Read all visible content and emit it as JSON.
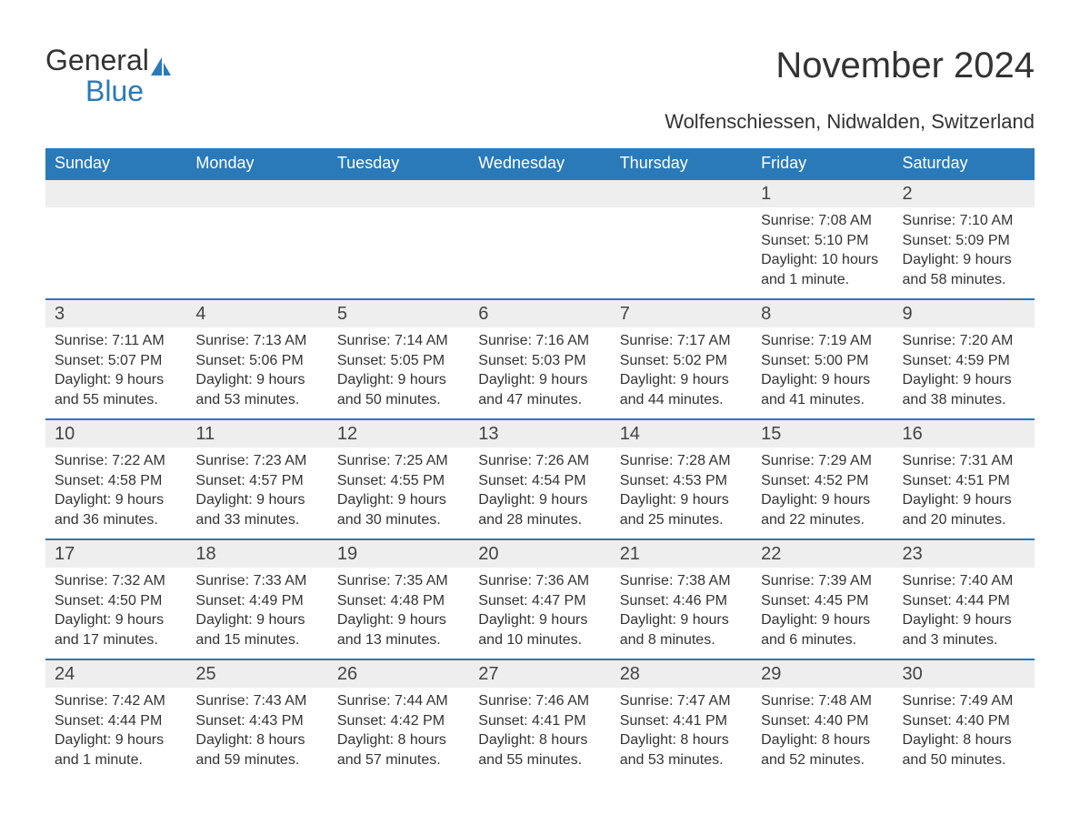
{
  "brand": {
    "name1": "General",
    "name2": "Blue",
    "sail_color": "#2a7ab9"
  },
  "title": "November 2024",
  "location": "Wolfenschiessen, Nidwalden, Switzerland",
  "colors": {
    "header_bg": "#2a7ab9",
    "header_text": "#ffffff",
    "daynum_bg": "#eeeeee",
    "row_border": "#2a7ab9",
    "text": "#333333",
    "background": "#ffffff"
  },
  "typography": {
    "title_fontsize": 40,
    "location_fontsize": 22,
    "header_fontsize": 18,
    "daynum_fontsize": 20,
    "body_fontsize": 16,
    "font_family": "Arial"
  },
  "weekdays": [
    "Sunday",
    "Monday",
    "Tuesday",
    "Wednesday",
    "Thursday",
    "Friday",
    "Saturday"
  ],
  "weeks": [
    [
      null,
      null,
      null,
      null,
      null,
      {
        "n": "1",
        "sunrise": "Sunrise: 7:08 AM",
        "sunset": "Sunset: 5:10 PM",
        "daylight": "Daylight: 10 hours and 1 minute."
      },
      {
        "n": "2",
        "sunrise": "Sunrise: 7:10 AM",
        "sunset": "Sunset: 5:09 PM",
        "daylight": "Daylight: 9 hours and 58 minutes."
      }
    ],
    [
      {
        "n": "3",
        "sunrise": "Sunrise: 7:11 AM",
        "sunset": "Sunset: 5:07 PM",
        "daylight": "Daylight: 9 hours and 55 minutes."
      },
      {
        "n": "4",
        "sunrise": "Sunrise: 7:13 AM",
        "sunset": "Sunset: 5:06 PM",
        "daylight": "Daylight: 9 hours and 53 minutes."
      },
      {
        "n": "5",
        "sunrise": "Sunrise: 7:14 AM",
        "sunset": "Sunset: 5:05 PM",
        "daylight": "Daylight: 9 hours and 50 minutes."
      },
      {
        "n": "6",
        "sunrise": "Sunrise: 7:16 AM",
        "sunset": "Sunset: 5:03 PM",
        "daylight": "Daylight: 9 hours and 47 minutes."
      },
      {
        "n": "7",
        "sunrise": "Sunrise: 7:17 AM",
        "sunset": "Sunset: 5:02 PM",
        "daylight": "Daylight: 9 hours and 44 minutes."
      },
      {
        "n": "8",
        "sunrise": "Sunrise: 7:19 AM",
        "sunset": "Sunset: 5:00 PM",
        "daylight": "Daylight: 9 hours and 41 minutes."
      },
      {
        "n": "9",
        "sunrise": "Sunrise: 7:20 AM",
        "sunset": "Sunset: 4:59 PM",
        "daylight": "Daylight: 9 hours and 38 minutes."
      }
    ],
    [
      {
        "n": "10",
        "sunrise": "Sunrise: 7:22 AM",
        "sunset": "Sunset: 4:58 PM",
        "daylight": "Daylight: 9 hours and 36 minutes."
      },
      {
        "n": "11",
        "sunrise": "Sunrise: 7:23 AM",
        "sunset": "Sunset: 4:57 PM",
        "daylight": "Daylight: 9 hours and 33 minutes."
      },
      {
        "n": "12",
        "sunrise": "Sunrise: 7:25 AM",
        "sunset": "Sunset: 4:55 PM",
        "daylight": "Daylight: 9 hours and 30 minutes."
      },
      {
        "n": "13",
        "sunrise": "Sunrise: 7:26 AM",
        "sunset": "Sunset: 4:54 PM",
        "daylight": "Daylight: 9 hours and 28 minutes."
      },
      {
        "n": "14",
        "sunrise": "Sunrise: 7:28 AM",
        "sunset": "Sunset: 4:53 PM",
        "daylight": "Daylight: 9 hours and 25 minutes."
      },
      {
        "n": "15",
        "sunrise": "Sunrise: 7:29 AM",
        "sunset": "Sunset: 4:52 PM",
        "daylight": "Daylight: 9 hours and 22 minutes."
      },
      {
        "n": "16",
        "sunrise": "Sunrise: 7:31 AM",
        "sunset": "Sunset: 4:51 PM",
        "daylight": "Daylight: 9 hours and 20 minutes."
      }
    ],
    [
      {
        "n": "17",
        "sunrise": "Sunrise: 7:32 AM",
        "sunset": "Sunset: 4:50 PM",
        "daylight": "Daylight: 9 hours and 17 minutes."
      },
      {
        "n": "18",
        "sunrise": "Sunrise: 7:33 AM",
        "sunset": "Sunset: 4:49 PM",
        "daylight": "Daylight: 9 hours and 15 minutes."
      },
      {
        "n": "19",
        "sunrise": "Sunrise: 7:35 AM",
        "sunset": "Sunset: 4:48 PM",
        "daylight": "Daylight: 9 hours and 13 minutes."
      },
      {
        "n": "20",
        "sunrise": "Sunrise: 7:36 AM",
        "sunset": "Sunset: 4:47 PM",
        "daylight": "Daylight: 9 hours and 10 minutes."
      },
      {
        "n": "21",
        "sunrise": "Sunrise: 7:38 AM",
        "sunset": "Sunset: 4:46 PM",
        "daylight": "Daylight: 9 hours and 8 minutes."
      },
      {
        "n": "22",
        "sunrise": "Sunrise: 7:39 AM",
        "sunset": "Sunset: 4:45 PM",
        "daylight": "Daylight: 9 hours and 6 minutes."
      },
      {
        "n": "23",
        "sunrise": "Sunrise: 7:40 AM",
        "sunset": "Sunset: 4:44 PM",
        "daylight": "Daylight: 9 hours and 3 minutes."
      }
    ],
    [
      {
        "n": "24",
        "sunrise": "Sunrise: 7:42 AM",
        "sunset": "Sunset: 4:44 PM",
        "daylight": "Daylight: 9 hours and 1 minute."
      },
      {
        "n": "25",
        "sunrise": "Sunrise: 7:43 AM",
        "sunset": "Sunset: 4:43 PM",
        "daylight": "Daylight: 8 hours and 59 minutes."
      },
      {
        "n": "26",
        "sunrise": "Sunrise: 7:44 AM",
        "sunset": "Sunset: 4:42 PM",
        "daylight": "Daylight: 8 hours and 57 minutes."
      },
      {
        "n": "27",
        "sunrise": "Sunrise: 7:46 AM",
        "sunset": "Sunset: 4:41 PM",
        "daylight": "Daylight: 8 hours and 55 minutes."
      },
      {
        "n": "28",
        "sunrise": "Sunrise: 7:47 AM",
        "sunset": "Sunset: 4:41 PM",
        "daylight": "Daylight: 8 hours and 53 minutes."
      },
      {
        "n": "29",
        "sunrise": "Sunrise: 7:48 AM",
        "sunset": "Sunset: 4:40 PM",
        "daylight": "Daylight: 8 hours and 52 minutes."
      },
      {
        "n": "30",
        "sunrise": "Sunrise: 7:49 AM",
        "sunset": "Sunset: 4:40 PM",
        "daylight": "Daylight: 8 hours and 50 minutes."
      }
    ]
  ]
}
